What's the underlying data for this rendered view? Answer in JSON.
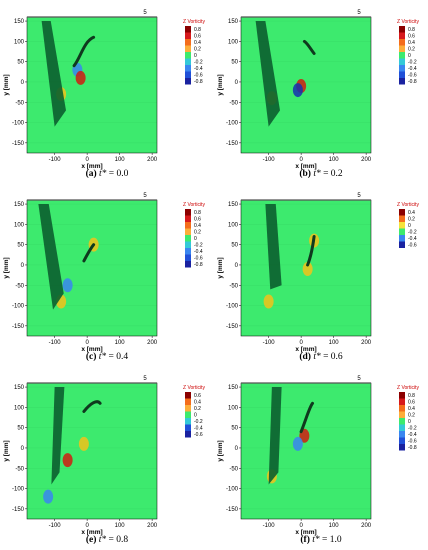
{
  "figure": {
    "axes": {
      "xlabel": "x [mm]",
      "ylabel": "y [mm]",
      "xticks": [
        -100,
        0,
        100,
        200
      ],
      "yticks": [
        150,
        100,
        50,
        0,
        -50,
        -100,
        -150
      ],
      "xlim": [
        -185,
        215
      ],
      "ylim": [
        -175,
        160
      ]
    },
    "ref_label": "5",
    "legend_title": "Z Vorticity",
    "colors": {
      "background": "#3dea6e",
      "strong_pos": "#d01c10",
      "pos": "#f2c21a",
      "neg": "#3a86f0",
      "strong_neg": "#1630b0",
      "body": "#0b5f2f",
      "wing": "#0f3a1e"
    },
    "panels": [
      {
        "id": "a",
        "caption_letter": "(a)",
        "caption_var": "t*",
        "caption_value": "= 0.0",
        "legend": [
          "0.8",
          "0.6",
          "0.4",
          "0.2",
          "0",
          "-0.2",
          "-0.4",
          "-0.6",
          "-0.8"
        ]
      },
      {
        "id": "b",
        "caption_letter": "(b)",
        "caption_var": "t*",
        "caption_value": "= 0.2",
        "legend": [
          "0.8",
          "0.6",
          "0.4",
          "0.2",
          "0",
          "-0.2",
          "-0.4",
          "-0.6",
          "-0.8"
        ]
      },
      {
        "id": "c",
        "caption_letter": "(c)",
        "caption_var": "t*",
        "caption_value": "= 0.4",
        "legend": [
          "0.8",
          "0.6",
          "0.4",
          "0.2",
          "0",
          "-0.2",
          "-0.4",
          "-0.6",
          "-0.8"
        ]
      },
      {
        "id": "d",
        "caption_letter": "(d)",
        "caption_var": "t*",
        "caption_value": "= 0.6",
        "legend": [
          "0.4",
          "0.2",
          "0",
          "-0.2",
          "-0.4",
          "-0.6"
        ]
      },
      {
        "id": "e",
        "caption_letter": "(e)",
        "caption_var": "t*",
        "caption_value": "= 0.8",
        "legend": [
          "0.6",
          "0.4",
          "0.2",
          "0",
          "-0.2",
          "-0.4",
          "-0.6"
        ]
      },
      {
        "id": "f",
        "caption_letter": "(f)",
        "caption_var": "t*",
        "caption_value": "= 1.0",
        "legend": [
          "0.8",
          "0.6",
          "0.4",
          "0.2",
          "0",
          "-0.2",
          "-0.4",
          "-0.6",
          "-0.8"
        ]
      }
    ]
  }
}
